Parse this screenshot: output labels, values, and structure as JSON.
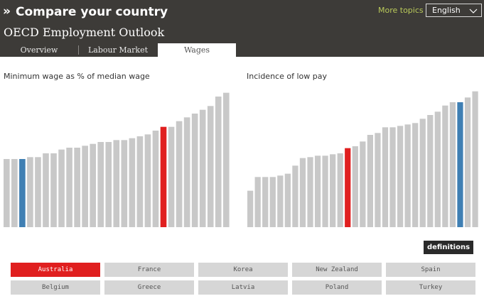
{
  "header": {
    "logo_glyph": "»",
    "title": "Compare your country",
    "subtitle": "OECD Employment Outlook",
    "more_topics": "More topics",
    "language": "English",
    "language_icon": "chevron-down-icon"
  },
  "tabs": [
    {
      "label": "Overview",
      "active": false
    },
    {
      "label": "Labour Market",
      "active": false
    },
    {
      "label": "Wages",
      "active": true
    }
  ],
  "colors": {
    "header_bg": "#3d3b38",
    "bar_default": "#c8c8c8",
    "bar_selected": "#e01f1f",
    "bar_highlight": "#3f7fb3",
    "country_selected": "#e01f1f",
    "country_default": "#d6d6d6"
  },
  "chart_data": [
    {
      "type": "bar",
      "title": "Minimum wage as % of median wage",
      "values": [
        0.36,
        0.36,
        0.36,
        0.37,
        0.37,
        0.39,
        0.39,
        0.41,
        0.42,
        0.42,
        0.43,
        0.44,
        0.45,
        0.45,
        0.46,
        0.46,
        0.47,
        0.48,
        0.49,
        0.51,
        0.53,
        0.53,
        0.56,
        0.58,
        0.6,
        0.62,
        0.64,
        0.69,
        0.71
      ],
      "highlight_index": 2,
      "selected_index": 20,
      "ylim": [
        0,
        0.75
      ]
    },
    {
      "type": "bar",
      "title": "Incidence of low pay",
      "values": [
        0.077,
        0.106,
        0.106,
        0.106,
        0.109,
        0.113,
        0.13,
        0.146,
        0.148,
        0.151,
        0.151,
        0.154,
        0.156,
        0.167,
        0.171,
        0.181,
        0.195,
        0.199,
        0.211,
        0.211,
        0.214,
        0.217,
        0.22,
        0.229,
        0.237,
        0.244,
        0.257,
        0.264,
        0.264,
        0.274,
        0.287
      ],
      "selected_index": 13,
      "highlight_index": 28,
      "ylim": [
        0,
        0.3
      ]
    }
  ],
  "definitions_label": "definitions",
  "countries": [
    {
      "name": "Australia",
      "selected": true
    },
    {
      "name": "France",
      "selected": false
    },
    {
      "name": "Korea",
      "selected": false
    },
    {
      "name": "New Zealand",
      "selected": false
    },
    {
      "name": "Spain",
      "selected": false
    },
    {
      "name": "Belgium",
      "selected": false
    },
    {
      "name": "Greece",
      "selected": false
    },
    {
      "name": "Latvia",
      "selected": false
    },
    {
      "name": "Poland",
      "selected": false
    },
    {
      "name": "Turkey",
      "selected": false
    }
  ]
}
